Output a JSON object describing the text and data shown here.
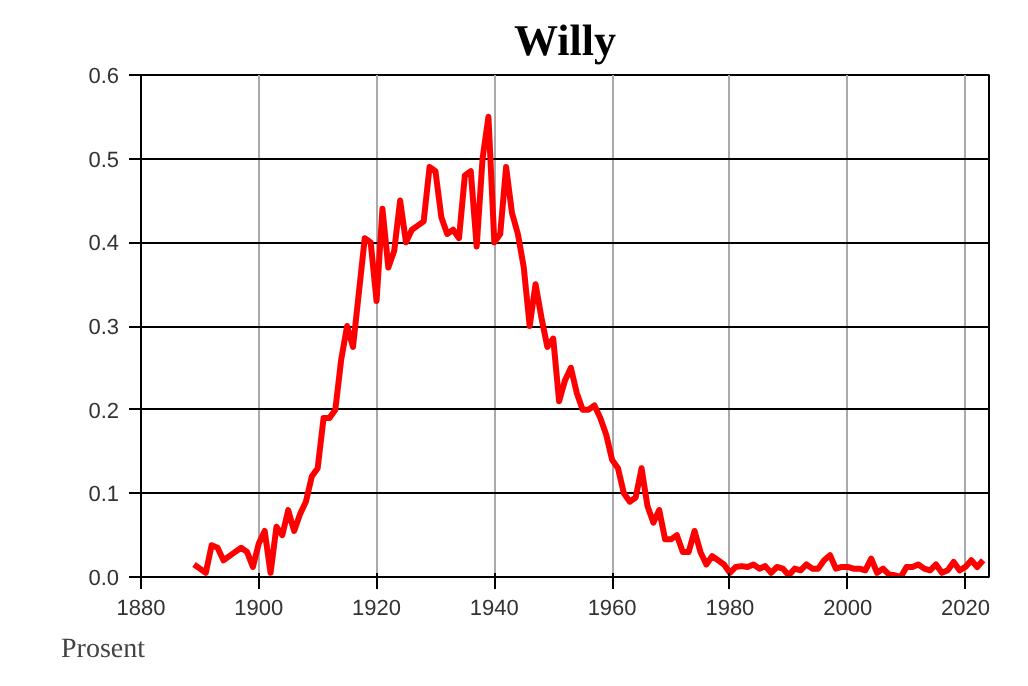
{
  "chart_data": {
    "type": "line",
    "title": "Willy",
    "ylabel": "Prosent",
    "x": [
      1889,
      1890,
      1891,
      1892,
      1893,
      1894,
      1895,
      1896,
      1897,
      1898,
      1899,
      1900,
      1901,
      1902,
      1903,
      1904,
      1905,
      1906,
      1907,
      1908,
      1909,
      1910,
      1911,
      1912,
      1913,
      1914,
      1915,
      1916,
      1917,
      1918,
      1919,
      1920,
      1921,
      1922,
      1923,
      1924,
      1925,
      1926,
      1927,
      1928,
      1929,
      1930,
      1931,
      1932,
      1933,
      1934,
      1935,
      1936,
      1937,
      1938,
      1939,
      1940,
      1941,
      1942,
      1943,
      1944,
      1945,
      1946,
      1947,
      1948,
      1949,
      1950,
      1951,
      1952,
      1953,
      1954,
      1955,
      1956,
      1957,
      1958,
      1959,
      1960,
      1961,
      1962,
      1963,
      1964,
      1965,
      1966,
      1967,
      1968,
      1969,
      1970,
      1971,
      1972,
      1973,
      1974,
      1975,
      1976,
      1977,
      1978,
      1979,
      1980,
      1981,
      1982,
      1983,
      1984,
      1985,
      1986,
      1987,
      1988,
      1989,
      1990,
      1991,
      1992,
      1993,
      1994,
      1995,
      1996,
      1997,
      1998,
      1999,
      2000,
      2001,
      2002,
      2003,
      2004,
      2005,
      2006,
      2007,
      2008,
      2009,
      2010,
      2011,
      2012,
      2013,
      2014,
      2015,
      2016,
      2017,
      2018,
      2019,
      2020,
      2021,
      2022,
      2023
    ],
    "series": [
      {
        "color": "#ff0000",
        "values": [
          0.015,
          0.01,
          0.005,
          0.038,
          0.035,
          0.02,
          0.025,
          0.03,
          0.035,
          0.03,
          0.012,
          0.04,
          0.055,
          0.005,
          0.06,
          0.05,
          0.08,
          0.055,
          0.075,
          0.09,
          0.12,
          0.13,
          0.19,
          0.19,
          0.2,
          0.26,
          0.3,
          0.275,
          0.34,
          0.405,
          0.4,
          0.33,
          0.44,
          0.37,
          0.39,
          0.45,
          0.4,
          0.415,
          0.42,
          0.425,
          0.49,
          0.485,
          0.43,
          0.41,
          0.415,
          0.405,
          0.48,
          0.485,
          0.395,
          0.5,
          0.55,
          0.4,
          0.41,
          0.49,
          0.435,
          0.41,
          0.37,
          0.3,
          0.35,
          0.31,
          0.275,
          0.285,
          0.21,
          0.235,
          0.25,
          0.22,
          0.2,
          0.2,
          0.205,
          0.19,
          0.17,
          0.14,
          0.13,
          0.1,
          0.09,
          0.095,
          0.13,
          0.085,
          0.065,
          0.08,
          0.045,
          0.045,
          0.05,
          0.03,
          0.03,
          0.055,
          0.03,
          0.015,
          0.025,
          0.02,
          0.015,
          0.005,
          0.012,
          0.013,
          0.012,
          0.015,
          0.01,
          0.013,
          0.005,
          0.012,
          0.01,
          0.002,
          0.01,
          0.008,
          0.015,
          0.01,
          0.01,
          0.02,
          0.026,
          0.01,
          0.012,
          0.012,
          0.01,
          0.01,
          0.008,
          0.022,
          0.005,
          0.01,
          0.003,
          0.002,
          0.0,
          0.012,
          0.012,
          0.015,
          0.01,
          0.008,
          0.015,
          0.005,
          0.008,
          0.018,
          0.008,
          0.012,
          0.02,
          0.012,
          0.02
        ]
      }
    ],
    "xlim": [
      1880,
      2024
    ],
    "xticks": [
      1880,
      1900,
      1920,
      1940,
      1960,
      1980,
      2000,
      2020
    ],
    "ylim": [
      0,
      0.6
    ],
    "yticks": [
      {
        "value": 0,
        "label": "0.0"
      },
      {
        "value": 0.1,
        "label": "0.1"
      },
      {
        "value": 0.2,
        "label": "0.2"
      },
      {
        "value": 0.3,
        "label": "0.3"
      },
      {
        "value": 0.4,
        "label": "0.4"
      },
      {
        "value": 0.5,
        "label": "0.5"
      },
      {
        "value": 0.6,
        "label": "0.6"
      }
    ],
    "grid": true
  }
}
